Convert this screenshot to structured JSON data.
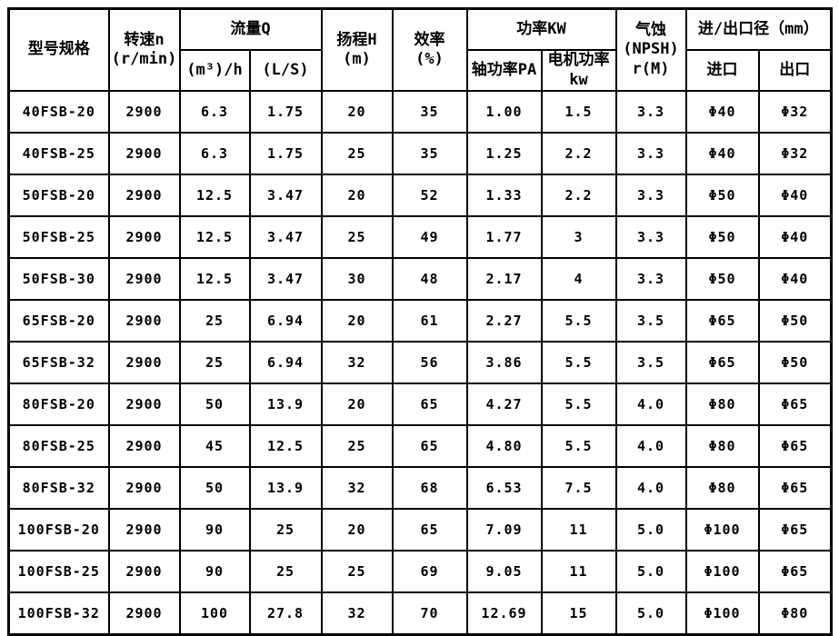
{
  "page": {
    "background": "#ffffff",
    "border_color": "#000000",
    "text_color": "#000000"
  },
  "table": {
    "headers": {
      "model": "型号规格",
      "speed": "转速n\n(r/min)",
      "flow_group": "流量Q",
      "flow_m3h": "(m³)/h",
      "flow_ls": "(L/S)",
      "head": "扬程H\n(m)",
      "efficiency": "效率\n(%)",
      "power_group": "功率KW",
      "power_shaft": "轴功率PA",
      "power_motor": "电机功率\nkw",
      "npsh": "气蚀\n(NPSH)\nr(M)",
      "inlet_outlet_group": "进/出口径（mm）",
      "inlet": "进口",
      "outlet": "出口"
    },
    "column_names": [
      "model",
      "speed",
      "flow-m3h",
      "flow-ls",
      "head",
      "efficiency",
      "shaft-power",
      "motor-power",
      "npsh",
      "inlet-diameter",
      "outlet-diameter"
    ],
    "rows": [
      [
        "40FSB-20",
        "2900",
        "6.3",
        "1.75",
        "20",
        "35",
        "1.00",
        "1.5",
        "3.3",
        "Φ40",
        "Φ32"
      ],
      [
        "40FSB-25",
        "2900",
        "6.3",
        "1.75",
        "25",
        "35",
        "1.25",
        "2.2",
        "3.3",
        "Φ40",
        "Φ32"
      ],
      [
        "50FSB-20",
        "2900",
        "12.5",
        "3.47",
        "20",
        "52",
        "1.33",
        "2.2",
        "3.3",
        "Φ50",
        "Φ40"
      ],
      [
        "50FSB-25",
        "2900",
        "12.5",
        "3.47",
        "25",
        "49",
        "1.77",
        "3",
        "3.3",
        "Φ50",
        "Φ40"
      ],
      [
        "50FSB-30",
        "2900",
        "12.5",
        "3.47",
        "30",
        "48",
        "2.17",
        "4",
        "3.3",
        "Φ50",
        "Φ40"
      ],
      [
        "65FSB-20",
        "2900",
        "25",
        "6.94",
        "20",
        "61",
        "2.27",
        "5.5",
        "3.5",
        "Φ65",
        "Φ50"
      ],
      [
        "65FSB-32",
        "2900",
        "25",
        "6.94",
        "32",
        "56",
        "3.86",
        "5.5",
        "3.5",
        "Φ65",
        "Φ50"
      ],
      [
        "80FSB-20",
        "2900",
        "50",
        "13.9",
        "20",
        "65",
        "4.27",
        "5.5",
        "4.0",
        "Φ80",
        "Φ65"
      ],
      [
        "80FSB-25",
        "2900",
        "45",
        "12.5",
        "25",
        "65",
        "4.80",
        "5.5",
        "4.0",
        "Φ80",
        "Φ65"
      ],
      [
        "80FSB-32",
        "2900",
        "50",
        "13.9",
        "32",
        "68",
        "6.53",
        "7.5",
        "4.0",
        "Φ80",
        "Φ65"
      ],
      [
        "100FSB-20",
        "2900",
        "90",
        "25",
        "20",
        "65",
        "7.09",
        "11",
        "5.0",
        "Φ100",
        "Φ65"
      ],
      [
        "100FSB-25",
        "2900",
        "90",
        "25",
        "25",
        "69",
        "9.05",
        "11",
        "5.0",
        "Φ100",
        "Φ65"
      ],
      [
        "100FSB-32",
        "2900",
        "100",
        "27.8",
        "32",
        "70",
        "12.69",
        "15",
        "5.0",
        "Φ100",
        "Φ80"
      ]
    ]
  }
}
